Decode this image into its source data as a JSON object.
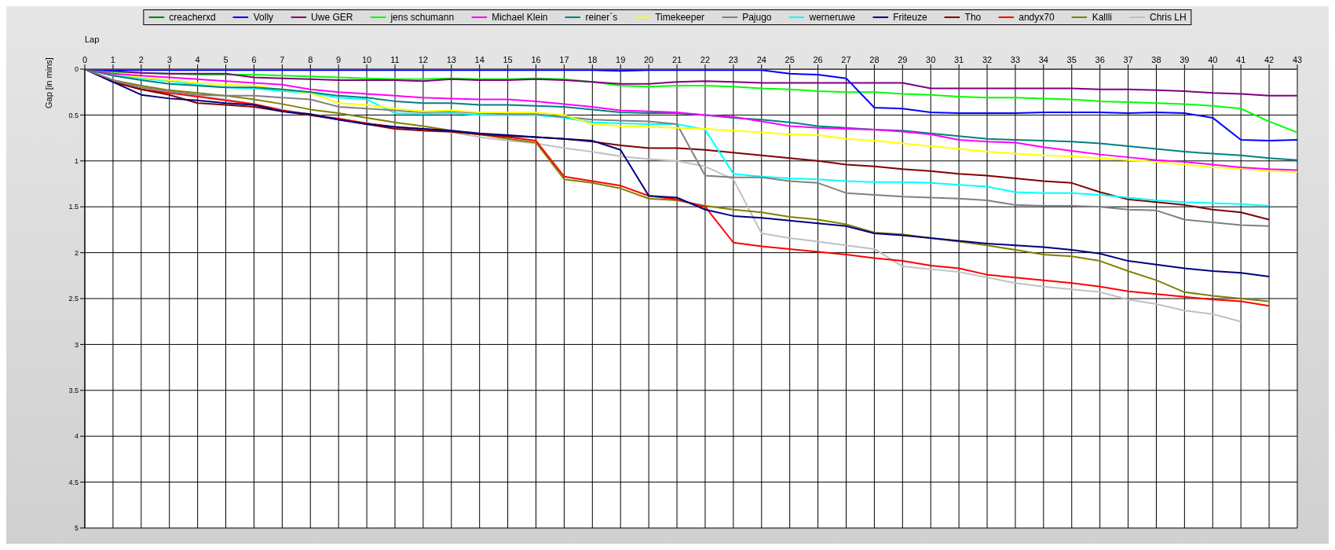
{
  "chart_data": {
    "type": "line",
    "xlabel": "Lap",
    "ylabel": "Gap [in mins]",
    "x": [
      0,
      1,
      2,
      3,
      4,
      5,
      6,
      7,
      8,
      9,
      10,
      11,
      12,
      13,
      14,
      15,
      16,
      17,
      18,
      19,
      20,
      21,
      22,
      23,
      24,
      25,
      26,
      27,
      28,
      29,
      30,
      31,
      32,
      33,
      34,
      35,
      36,
      37,
      38,
      39,
      40,
      41,
      42,
      43
    ],
    "xlim": [
      0,
      43
    ],
    "xticks": [
      0,
      1,
      2,
      3,
      4,
      5,
      6,
      7,
      8,
      9,
      10,
      11,
      12,
      13,
      14,
      15,
      16,
      17,
      18,
      19,
      20,
      21,
      22,
      23,
      24,
      25,
      26,
      27,
      28,
      29,
      30,
      31,
      32,
      33,
      34,
      35,
      36,
      37,
      38,
      39,
      40,
      41,
      42,
      43
    ],
    "ylim": [
      5,
      0
    ],
    "yticks": [
      0,
      0.5,
      1,
      1.5,
      2,
      2.5,
      3,
      3.5,
      4,
      4.5,
      5
    ],
    "grid": true,
    "legend": "top",
    "marker": "none",
    "line_style": "solid",
    "series": [
      {
        "name": "creacherxd",
        "color": "#008000",
        "values": [
          0,
          0,
          0,
          0,
          0,
          0,
          0,
          0,
          0,
          0,
          0,
          0,
          0,
          0,
          0,
          0,
          0,
          0,
          0,
          0,
          0,
          0,
          0,
          0,
          0,
          0,
          0,
          0,
          0,
          0,
          0,
          0,
          0,
          0,
          0,
          0,
          0,
          0,
          0,
          0,
          0,
          0,
          0,
          0
        ]
      },
      {
        "name": "Volly",
        "color": "#0000ff",
        "values": [
          0,
          0.01,
          0.01,
          0.01,
          0.01,
          0.01,
          0.01,
          0.01,
          0.01,
          0.01,
          0.01,
          0.01,
          0.01,
          0.01,
          0.01,
          0.01,
          0.01,
          0.01,
          0.01,
          0.02,
          0.01,
          0.01,
          0.01,
          0.01,
          0.01,
          0.05,
          0.06,
          0.1,
          0.42,
          0.43,
          0.47,
          0.48,
          0.48,
          0.48,
          0.47,
          0.47,
          0.47,
          0.48,
          0.47,
          0.48,
          0.53,
          0.77,
          0.78,
          0.77
        ]
      },
      {
        "name": "Uwe GER",
        "color": "#800080",
        "values": [
          0,
          0.02,
          0.04,
          0.05,
          0.05,
          0.05,
          0.09,
          0.1,
          0.11,
          0.12,
          0.12,
          0.12,
          0.13,
          0.11,
          0.12,
          0.12,
          0.11,
          0.12,
          0.14,
          0.16,
          0.16,
          0.14,
          0.13,
          0.14,
          0.15,
          0.15,
          0.15,
          0.15,
          0.15,
          0.15,
          0.21,
          0.21,
          0.21,
          0.21,
          0.21,
          0.21,
          0.22,
          0.22,
          0.23,
          0.24,
          0.26,
          0.27,
          0.29,
          0.29
        ]
      },
      {
        "name": "jens  schumann",
        "color": "#00ff00",
        "values": [
          0,
          0.03,
          0.04,
          0.05,
          0.06,
          0.06,
          0.06,
          0.07,
          0.08,
          0.09,
          0.1,
          0.11,
          0.11,
          0.1,
          0.11,
          0.11,
          0.1,
          0.11,
          0.14,
          0.18,
          0.19,
          0.18,
          0.18,
          0.19,
          0.21,
          0.22,
          0.24,
          0.25,
          0.25,
          0.27,
          0.28,
          0.3,
          0.31,
          0.31,
          0.32,
          0.33,
          0.35,
          0.36,
          0.37,
          0.38,
          0.4,
          0.43,
          0.57,
          0.69
        ]
      },
      {
        "name": "Michael Klein",
        "color": "#ff00ff",
        "values": [
          0,
          0.05,
          0.07,
          0.09,
          0.11,
          0.13,
          0.15,
          0.17,
          0.22,
          0.25,
          0.27,
          0.29,
          0.31,
          0.32,
          0.33,
          0.33,
          0.35,
          0.38,
          0.41,
          0.45,
          0.46,
          0.47,
          0.5,
          0.52,
          0.57,
          0.62,
          0.64,
          0.65,
          0.66,
          0.68,
          0.71,
          0.77,
          0.79,
          0.8,
          0.85,
          0.89,
          0.93,
          0.96,
          0.99,
          1.01,
          1.04,
          1.07,
          1.09,
          1.1
        ]
      },
      {
        "name": "reiner`s",
        "color": "#008080",
        "values": [
          0,
          0.07,
          0.12,
          0.16,
          0.18,
          0.2,
          0.2,
          0.22,
          0.25,
          0.29,
          0.31,
          0.35,
          0.37,
          0.37,
          0.39,
          0.39,
          0.4,
          0.41,
          0.44,
          0.47,
          0.48,
          0.48,
          0.5,
          0.53,
          0.55,
          0.58,
          0.62,
          0.64,
          0.66,
          0.67,
          0.7,
          0.73,
          0.76,
          0.77,
          0.78,
          0.79,
          0.81,
          0.84,
          0.87,
          0.9,
          0.92,
          0.94,
          0.97,
          0.99
        ]
      },
      {
        "name": "Timekeeper",
        "color": "#ffff00",
        "values": [
          0,
          0.05,
          0.09,
          0.12,
          0.15,
          0.17,
          0.18,
          0.22,
          0.26,
          0.37,
          0.39,
          0.43,
          0.46,
          0.45,
          0.47,
          0.47,
          0.47,
          0.5,
          0.6,
          0.62,
          0.63,
          0.64,
          0.65,
          0.67,
          0.69,
          0.71,
          0.72,
          0.76,
          0.78,
          0.81,
          0.84,
          0.87,
          0.9,
          0.92,
          0.94,
          0.95,
          0.97,
          0.99,
          1.01,
          1.04,
          1.07,
          1.08,
          1.11,
          1.12
        ]
      },
      {
        "name": "Pajugo",
        "color": "#808080",
        "values": [
          0,
          0.12,
          0.2,
          0.24,
          0.28,
          0.29,
          0.29,
          0.31,
          0.33,
          0.41,
          0.43,
          0.45,
          0.47,
          0.46,
          0.48,
          0.49,
          0.49,
          0.52,
          0.55,
          0.56,
          0.57,
          0.6,
          1.16,
          1.18,
          1.18,
          1.22,
          1.24,
          1.35,
          1.37,
          1.39,
          1.4,
          1.41,
          1.43,
          1.48,
          1.49,
          1.49,
          1.5,
          1.53,
          1.54,
          1.64,
          1.67,
          1.7,
          1.71,
          null
        ]
      },
      {
        "name": "werneruwe",
        "color": "#00ffff",
        "values": [
          0,
          0.06,
          0.1,
          0.13,
          0.17,
          0.2,
          0.21,
          0.24,
          0.26,
          0.31,
          0.33,
          0.48,
          0.49,
          0.48,
          0.5,
          0.5,
          0.5,
          0.53,
          0.58,
          0.59,
          0.6,
          0.6,
          0.66,
          1.14,
          1.17,
          1.19,
          1.2,
          1.22,
          1.23,
          1.23,
          1.24,
          1.26,
          1.28,
          1.34,
          1.35,
          1.35,
          1.37,
          1.4,
          1.43,
          1.45,
          1.46,
          1.47,
          1.49,
          null
        ]
      },
      {
        "name": "Friteuze",
        "color": "#000080",
        "values": [
          0,
          0.14,
          0.28,
          0.32,
          0.34,
          0.37,
          0.39,
          0.46,
          0.49,
          0.55,
          0.6,
          0.63,
          0.65,
          0.67,
          0.7,
          0.72,
          0.74,
          0.76,
          0.78,
          0.88,
          1.38,
          1.4,
          1.53,
          1.6,
          1.62,
          1.65,
          1.68,
          1.71,
          1.79,
          1.81,
          1.84,
          1.87,
          1.9,
          1.92,
          1.94,
          1.97,
          2.01,
          2.09,
          2.13,
          2.17,
          2.2,
          2.22,
          2.26,
          null
        ]
      },
      {
        "name": "Tho",
        "color": "#800000",
        "values": [
          0,
          0.14,
          0.22,
          0.28,
          0.37,
          0.39,
          0.41,
          0.46,
          0.5,
          0.55,
          0.6,
          0.65,
          0.67,
          0.68,
          0.71,
          0.73,
          0.74,
          0.76,
          0.79,
          0.83,
          0.86,
          0.86,
          0.88,
          0.91,
          0.94,
          0.97,
          1.0,
          1.04,
          1.06,
          1.09,
          1.11,
          1.14,
          1.16,
          1.19,
          1.22,
          1.24,
          1.34,
          1.42,
          1.45,
          1.48,
          1.53,
          1.56,
          1.64,
          null
        ]
      },
      {
        "name": "andyx70",
        "color": "#ff0000",
        "values": [
          0,
          0.14,
          0.22,
          0.26,
          0.3,
          0.34,
          0.38,
          0.45,
          0.5,
          0.54,
          0.59,
          0.63,
          0.65,
          0.68,
          0.71,
          0.74,
          0.78,
          1.17,
          1.22,
          1.27,
          1.38,
          1.42,
          1.5,
          1.89,
          1.93,
          1.96,
          1.99,
          2.02,
          2.06,
          2.09,
          2.14,
          2.17,
          2.24,
          2.27,
          2.3,
          2.33,
          2.37,
          2.42,
          2.45,
          2.48,
          2.51,
          2.53,
          2.58,
          null
        ]
      },
      {
        "name": "Kallli",
        "color": "#808000",
        "values": [
          0,
          0.12,
          0.18,
          0.23,
          0.26,
          0.29,
          0.33,
          0.38,
          0.44,
          0.48,
          0.53,
          0.58,
          0.62,
          0.67,
          0.71,
          0.76,
          0.8,
          1.2,
          1.24,
          1.3,
          1.41,
          1.43,
          1.49,
          1.53,
          1.56,
          1.61,
          1.64,
          1.69,
          1.78,
          1.8,
          1.84,
          1.88,
          1.92,
          1.97,
          2.02,
          2.04,
          2.09,
          2.2,
          2.3,
          2.43,
          2.47,
          2.5,
          2.53,
          null
        ]
      },
      {
        "name": "Chris LH",
        "color": "#c0c0c0",
        "values": [
          0,
          0.13,
          0.2,
          0.25,
          0.29,
          0.33,
          0.38,
          0.44,
          0.49,
          0.54,
          0.59,
          0.64,
          0.67,
          0.69,
          0.74,
          0.78,
          0.81,
          0.86,
          0.9,
          0.95,
          0.98,
          1.0,
          1.06,
          1.2,
          1.79,
          1.84,
          1.88,
          1.92,
          1.96,
          2.15,
          2.18,
          2.21,
          2.27,
          2.33,
          2.37,
          2.4,
          2.43,
          2.51,
          2.56,
          2.63,
          2.67,
          2.75,
          null,
          null
        ]
      }
    ]
  }
}
